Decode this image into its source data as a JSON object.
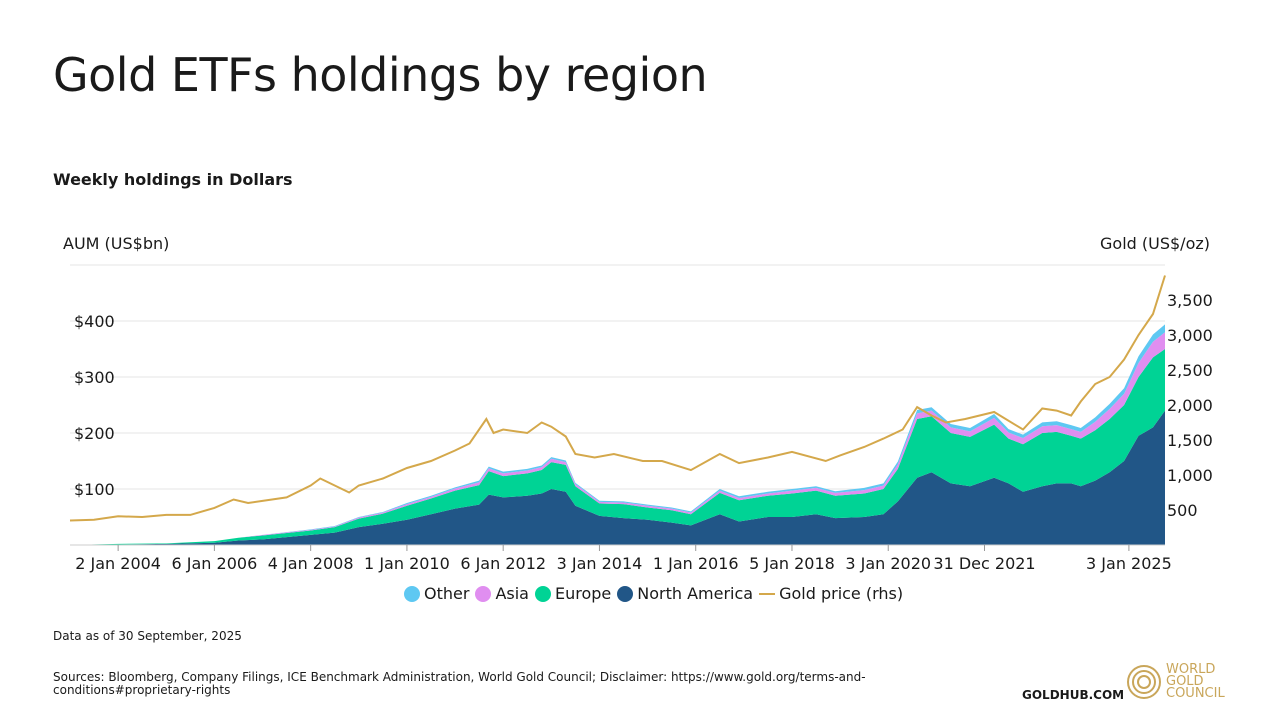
{
  "title": "Gold ETFs holdings by region",
  "subtitle": "Weekly holdings in Dollars",
  "footer": {
    "as_of": "Data as of 30 September, 2025",
    "sources": "Sources: Bloomberg, Company Filings, ICE Benchmark Administration, World Gold Council; Disclaimer: https://www.gold.org/terms-and-conditions#proprietary-rights",
    "site": "GOLDHUB.COM",
    "logo_lines": [
      "WORLD",
      "GOLD",
      "COUNCIL"
    ]
  },
  "colors": {
    "other": "#5ec8f2",
    "asia": "#e08ef0",
    "europe": "#00d395",
    "north_america": "#215687",
    "gold": "#d4a84b",
    "grid": "#e6e6e6",
    "text": "#1a1a1a"
  },
  "icons": [
    "legend-dot-icon",
    "legend-line-icon",
    "wgc-logo-icon"
  ],
  "chart_data": {
    "type": "area",
    "stacked": true,
    "ylabel": "AUM (US$bn)",
    "y2label": "Gold (US$/oz)",
    "ylim": [
      0,
      500
    ],
    "y2lim": [
      0,
      4000
    ],
    "yticks": [
      100,
      200,
      300,
      400
    ],
    "ytick_labels": [
      "$100",
      "$200",
      "$300",
      "$400"
    ],
    "y2ticks": [
      500,
      1000,
      1500,
      2000,
      2500,
      3000,
      3500
    ],
    "y2tick_labels": [
      "500",
      "1,000",
      "1,500",
      "2,000",
      "2,500",
      "3,000",
      "3,500"
    ],
    "xlim": [
      2003.0,
      2025.75
    ],
    "xtick_labels": [
      {
        "x": 2004.0,
        "label": "2 Jan 2004"
      },
      {
        "x": 2006.0,
        "label": "6 Jan 2006"
      },
      {
        "x": 2008.0,
        "label": "4 Jan 2008"
      },
      {
        "x": 2010.0,
        "label": "1 Jan 2010"
      },
      {
        "x": 2012.0,
        "label": "6 Jan 2012"
      },
      {
        "x": 2014.0,
        "label": "3 Jan 2014"
      },
      {
        "x": 2016.0,
        "label": "1 Jan 2016"
      },
      {
        "x": 2018.0,
        "label": "5 Jan 2018"
      },
      {
        "x": 2020.0,
        "label": "3 Jan 2020"
      },
      {
        "x": 2022.0,
        "label": "31 Dec 2021"
      },
      {
        "x": 2025.0,
        "label": "3 Jan 2025"
      }
    ],
    "x": [
      2003.0,
      2004.0,
      2005.0,
      2006.0,
      2006.5,
      2007.0,
      2008.0,
      2008.5,
      2009.0,
      2009.5,
      2010.0,
      2010.5,
      2011.0,
      2011.5,
      2011.7,
      2012.0,
      2012.5,
      2012.8,
      2013.0,
      2013.3,
      2013.5,
      2014.0,
      2014.5,
      2015.0,
      2015.5,
      2015.9,
      2016.5,
      2016.9,
      2017.5,
      2018.0,
      2018.5,
      2018.9,
      2019.5,
      2019.9,
      2020.2,
      2020.6,
      2020.9,
      2021.3,
      2021.7,
      2022.2,
      2022.5,
      2022.8,
      2023.2,
      2023.5,
      2023.8,
      2024.0,
      2024.3,
      2024.6,
      2024.9,
      2025.2,
      2025.5,
      2025.75
    ],
    "series": [
      {
        "name": "North America",
        "key": "north_america",
        "values": [
          0,
          1,
          2,
          4,
          8,
          10,
          18,
          22,
          32,
          38,
          45,
          55,
          65,
          72,
          90,
          85,
          88,
          92,
          100,
          95,
          70,
          52,
          48,
          45,
          40,
          35,
          55,
          42,
          50,
          50,
          55,
          48,
          50,
          55,
          78,
          120,
          130,
          110,
          105,
          120,
          110,
          95,
          105,
          110,
          110,
          105,
          115,
          130,
          150,
          195,
          210,
          240
        ]
      },
      {
        "name": "Europe",
        "key": "europe",
        "values": [
          0,
          1,
          1,
          3,
          5,
          7,
          8,
          10,
          15,
          18,
          25,
          28,
          32,
          35,
          42,
          38,
          40,
          42,
          48,
          48,
          35,
          22,
          25,
          22,
          22,
          20,
          38,
          38,
          38,
          42,
          42,
          40,
          42,
          45,
          58,
          105,
          100,
          90,
          88,
          95,
          80,
          85,
          95,
          92,
          85,
          85,
          90,
          95,
          100,
          105,
          125,
          110
        ]
      },
      {
        "name": "Asia",
        "key": "asia",
        "values": [
          0,
          0,
          0,
          0,
          0,
          1,
          1,
          1,
          2,
          2,
          3,
          3,
          4,
          5,
          5,
          5,
          5,
          5,
          6,
          5,
          4,
          3,
          3,
          3,
          3,
          3,
          4,
          4,
          4,
          5,
          5,
          5,
          6,
          6,
          8,
          10,
          10,
          10,
          10,
          12,
          11,
          11,
          12,
          12,
          12,
          12,
          15,
          18,
          20,
          25,
          28,
          30
        ]
      },
      {
        "name": "Other",
        "key": "other",
        "values": [
          0,
          0,
          0,
          0,
          0,
          0,
          1,
          1,
          1,
          1,
          2,
          2,
          2,
          3,
          3,
          3,
          3,
          3,
          3,
          3,
          2,
          2,
          2,
          2,
          2,
          2,
          3,
          3,
          3,
          3,
          3,
          3,
          4,
          4,
          5,
          6,
          6,
          6,
          6,
          7,
          6,
          6,
          7,
          7,
          7,
          7,
          8,
          9,
          10,
          12,
          13,
          14
        ]
      }
    ],
    "line_series": {
      "name": "Gold price (rhs)",
      "key": "gold",
      "axis": "right",
      "x": [
        2003.0,
        2003.5,
        2004.0,
        2004.5,
        2005.0,
        2005.5,
        2006.0,
        2006.4,
        2006.7,
        2007.0,
        2007.5,
        2008.0,
        2008.2,
        2008.8,
        2009.0,
        2009.5,
        2010.0,
        2010.5,
        2011.0,
        2011.3,
        2011.65,
        2011.8,
        2012.0,
        2012.5,
        2012.8,
        2013.0,
        2013.3,
        2013.5,
        2013.9,
        2014.3,
        2014.9,
        2015.3,
        2015.9,
        2016.5,
        2016.9,
        2017.5,
        2018.0,
        2018.7,
        2019.0,
        2019.5,
        2019.9,
        2020.3,
        2020.6,
        2020.9,
        2021.2,
        2021.6,
        2022.2,
        2022.8,
        2023.2,
        2023.5,
        2023.8,
        2024.0,
        2024.3,
        2024.6,
        2024.9,
        2025.2,
        2025.5,
        2025.75
      ],
      "values": [
        350,
        360,
        410,
        400,
        430,
        430,
        530,
        650,
        600,
        630,
        680,
        850,
        950,
        750,
        850,
        950,
        1100,
        1200,
        1350,
        1450,
        1800,
        1600,
        1650,
        1600,
        1750,
        1690,
        1550,
        1300,
        1250,
        1300,
        1200,
        1200,
        1070,
        1300,
        1170,
        1250,
        1330,
        1200,
        1280,
        1400,
        1520,
        1650,
        1970,
        1850,
        1750,
        1800,
        1900,
        1650,
        1950,
        1920,
        1850,
        2050,
        2300,
        2400,
        2650,
        3000,
        3300,
        3850
      ]
    },
    "legend": [
      "Other",
      "Asia",
      "Europe",
      "North America",
      "Gold price (rhs)"
    ],
    "legend_position": "bottom",
    "grid": "horizontal"
  }
}
